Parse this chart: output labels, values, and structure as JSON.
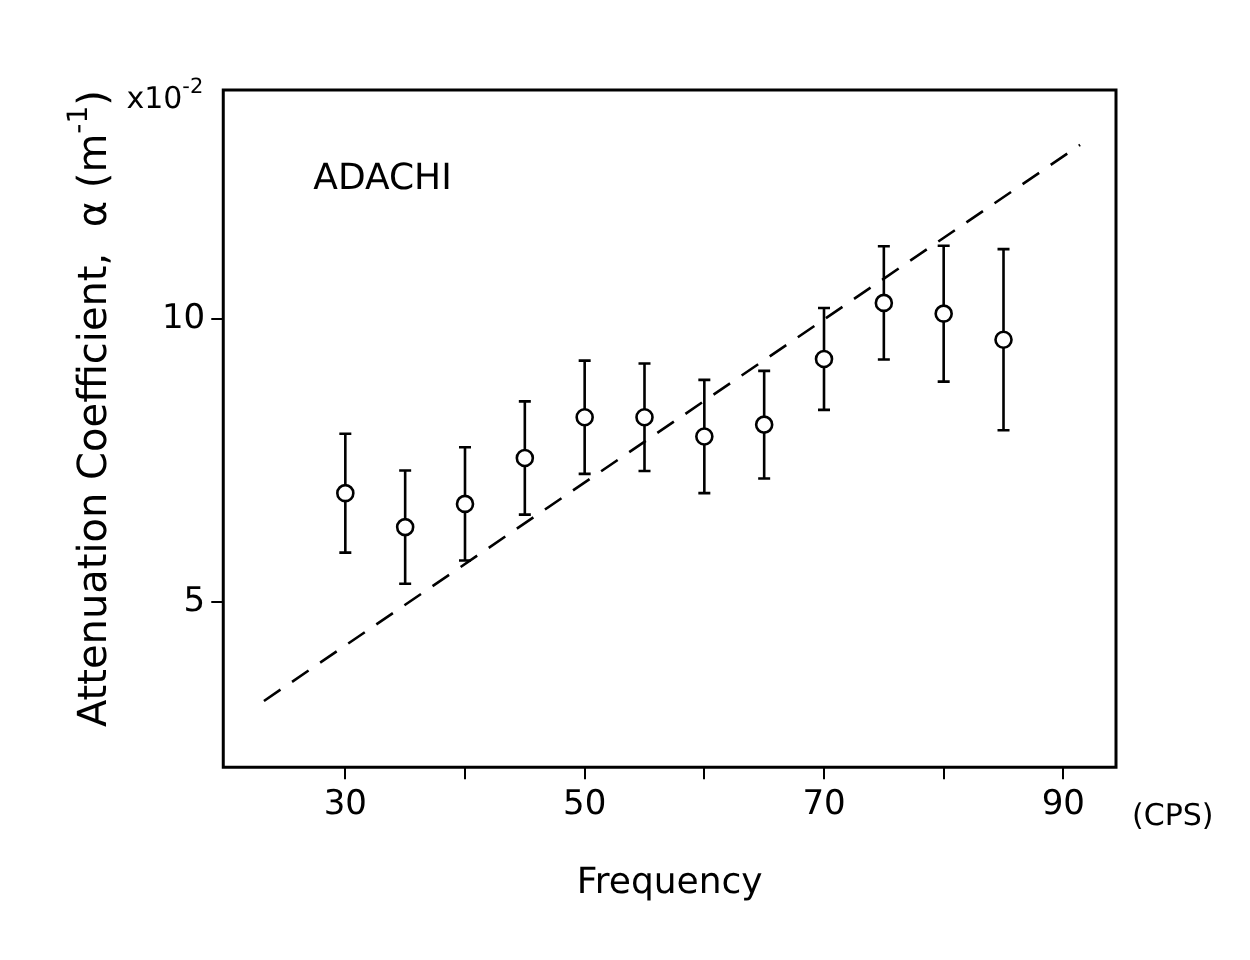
{
  "chart_data": {
    "type": "scatter",
    "xlabel": "Frequency",
    "ylabel": "Attenuation Coefficient,  α (m$^{-1}$)",
    "annotations": [
      "ADACHI",
      "x10$^{-2}$",
      "(CPS)"
    ],
    "x": [
      30,
      35,
      40,
      45,
      50,
      55,
      60,
      65,
      70,
      75,
      80,
      85
    ],
    "series": [
      {
        "color": "#000000",
        "marker": "circle",
        "values": [
          6.92,
          6.32,
          6.73,
          7.54,
          8.26,
          8.26,
          7.92,
          8.13,
          9.29,
          10.28,
          10.09,
          9.63
        ],
        "errors": [
          1.05,
          1.0,
          1.0,
          1.0,
          1.0,
          0.95,
          1.0,
          0.95,
          0.9,
          1.0,
          1.2,
          1.6
        ]
      },
      {
        "type": "line",
        "color": "#000000",
        "marker": "none",
        "line_style": "dashed",
        "x": [
          23.2,
          91.4
        ],
        "values": [
          3.25,
          13.07
        ]
      }
    ],
    "xlim": [
      19.8,
      94.4
    ],
    "xticks": [
      30,
      {
        "value": 40,
        "label": null
      },
      50,
      {
        "value": 60,
        "label": null
      },
      70,
      {
        "value": 80,
        "label": null
      },
      90
    ],
    "ylim": [
      2.08,
      14.04
    ],
    "yticks": [
      5,
      10
    ],
    "grid": false,
    "legend": false
  }
}
